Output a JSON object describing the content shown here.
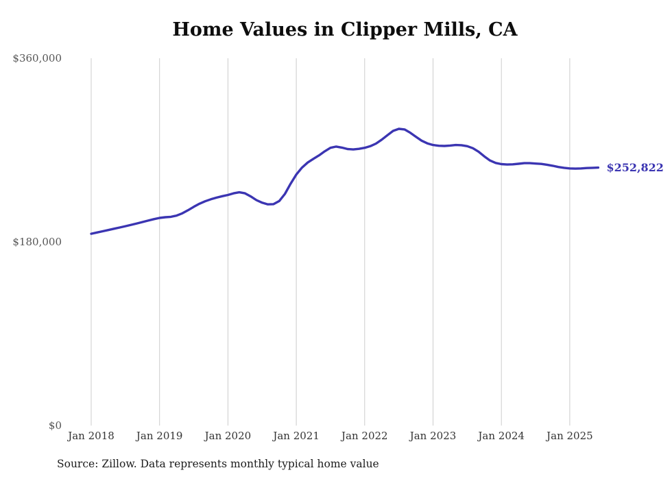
{
  "page": {
    "title": "Home Values in Clipper Mills, CA",
    "source_note": "Source: Zillow. Data represents monthly typical home value"
  },
  "colors": {
    "line": "#3b35b2",
    "grid": "#cccccc",
    "end_label": "#3b35b2"
  },
  "chart_data": {
    "type": "line",
    "title": "Home Values in Clipper Mills, CA",
    "xlabel": "",
    "ylabel": "",
    "ylim": [
      0,
      360000
    ],
    "grid": "vertical",
    "legend": false,
    "end_label": {
      "text": "$252,822",
      "value": 252822
    },
    "yticks": [
      {
        "value": 0,
        "label": "$0"
      },
      {
        "value": 180000,
        "label": "$180,000"
      },
      {
        "value": 360000,
        "label": "$360,000"
      }
    ],
    "xticks": [
      {
        "label": "Jan 2018",
        "month_index": 0
      },
      {
        "label": "Jan 2019",
        "month_index": 12
      },
      {
        "label": "Jan 2020",
        "month_index": 24
      },
      {
        "label": "Jan 2021",
        "month_index": 36
      },
      {
        "label": "Jan 2022",
        "month_index": 48
      },
      {
        "label": "Jan 2023",
        "month_index": 60
      },
      {
        "label": "Jan 2024",
        "month_index": 72
      },
      {
        "label": "Jan 2025",
        "month_index": 84
      }
    ],
    "series": [
      {
        "name": "Typical home value",
        "color": "#3b35b2",
        "x": [
          "2018-01",
          "2018-02",
          "2018-03",
          "2018-04",
          "2018-05",
          "2018-06",
          "2018-07",
          "2018-08",
          "2018-09",
          "2018-10",
          "2018-11",
          "2018-12",
          "2019-01",
          "2019-02",
          "2019-03",
          "2019-04",
          "2019-05",
          "2019-06",
          "2019-07",
          "2019-08",
          "2019-09",
          "2019-10",
          "2019-11",
          "2019-12",
          "2020-01",
          "2020-02",
          "2020-03",
          "2020-04",
          "2020-05",
          "2020-06",
          "2020-07",
          "2020-08",
          "2020-09",
          "2020-10",
          "2020-11",
          "2020-12",
          "2021-01",
          "2021-02",
          "2021-03",
          "2021-04",
          "2021-05",
          "2021-06",
          "2021-07",
          "2021-08",
          "2021-09",
          "2021-10",
          "2021-11",
          "2021-12",
          "2022-01",
          "2022-02",
          "2022-03",
          "2022-04",
          "2022-05",
          "2022-06",
          "2022-07",
          "2022-08",
          "2022-09",
          "2022-10",
          "2022-11",
          "2022-12",
          "2023-01",
          "2023-02",
          "2023-03",
          "2023-04",
          "2023-05",
          "2023-06",
          "2023-07",
          "2023-08",
          "2023-09",
          "2023-10",
          "2023-11",
          "2023-12",
          "2024-01",
          "2024-02",
          "2024-03",
          "2024-04",
          "2024-05",
          "2024-06",
          "2024-07",
          "2024-08",
          "2024-09",
          "2024-10",
          "2024-11",
          "2024-12",
          "2025-01",
          "2025-02",
          "2025-03",
          "2025-04",
          "2025-05",
          "2025-06"
        ],
        "values": [
          188000,
          189200,
          190400,
          191600,
          192900,
          194100,
          195400,
          196700,
          198100,
          199500,
          200900,
          202300,
          203500,
          204200,
          204600,
          205800,
          208000,
          211000,
          214400,
          217400,
          219800,
          221800,
          223400,
          224800,
          226000,
          227600,
          228600,
          227600,
          224600,
          221000,
          218400,
          216800,
          217000,
          220000,
          227000,
          237000,
          246000,
          252800,
          257800,
          261400,
          264800,
          268800,
          272200,
          273400,
          272400,
          271000,
          270600,
          271200,
          272200,
          273800,
          276400,
          280200,
          284600,
          288800,
          290800,
          290200,
          287000,
          283000,
          279200,
          276600,
          275000,
          274200,
          274000,
          274400,
          275000,
          274800,
          273800,
          271800,
          268400,
          263800,
          259800,
          257400,
          256200,
          255800,
          256000,
          256600,
          257200,
          257200,
          256800,
          256400,
          255600,
          254600,
          253400,
          252600,
          252000,
          251800,
          252000,
          252400,
          252600,
          252822
        ]
      }
    ]
  }
}
